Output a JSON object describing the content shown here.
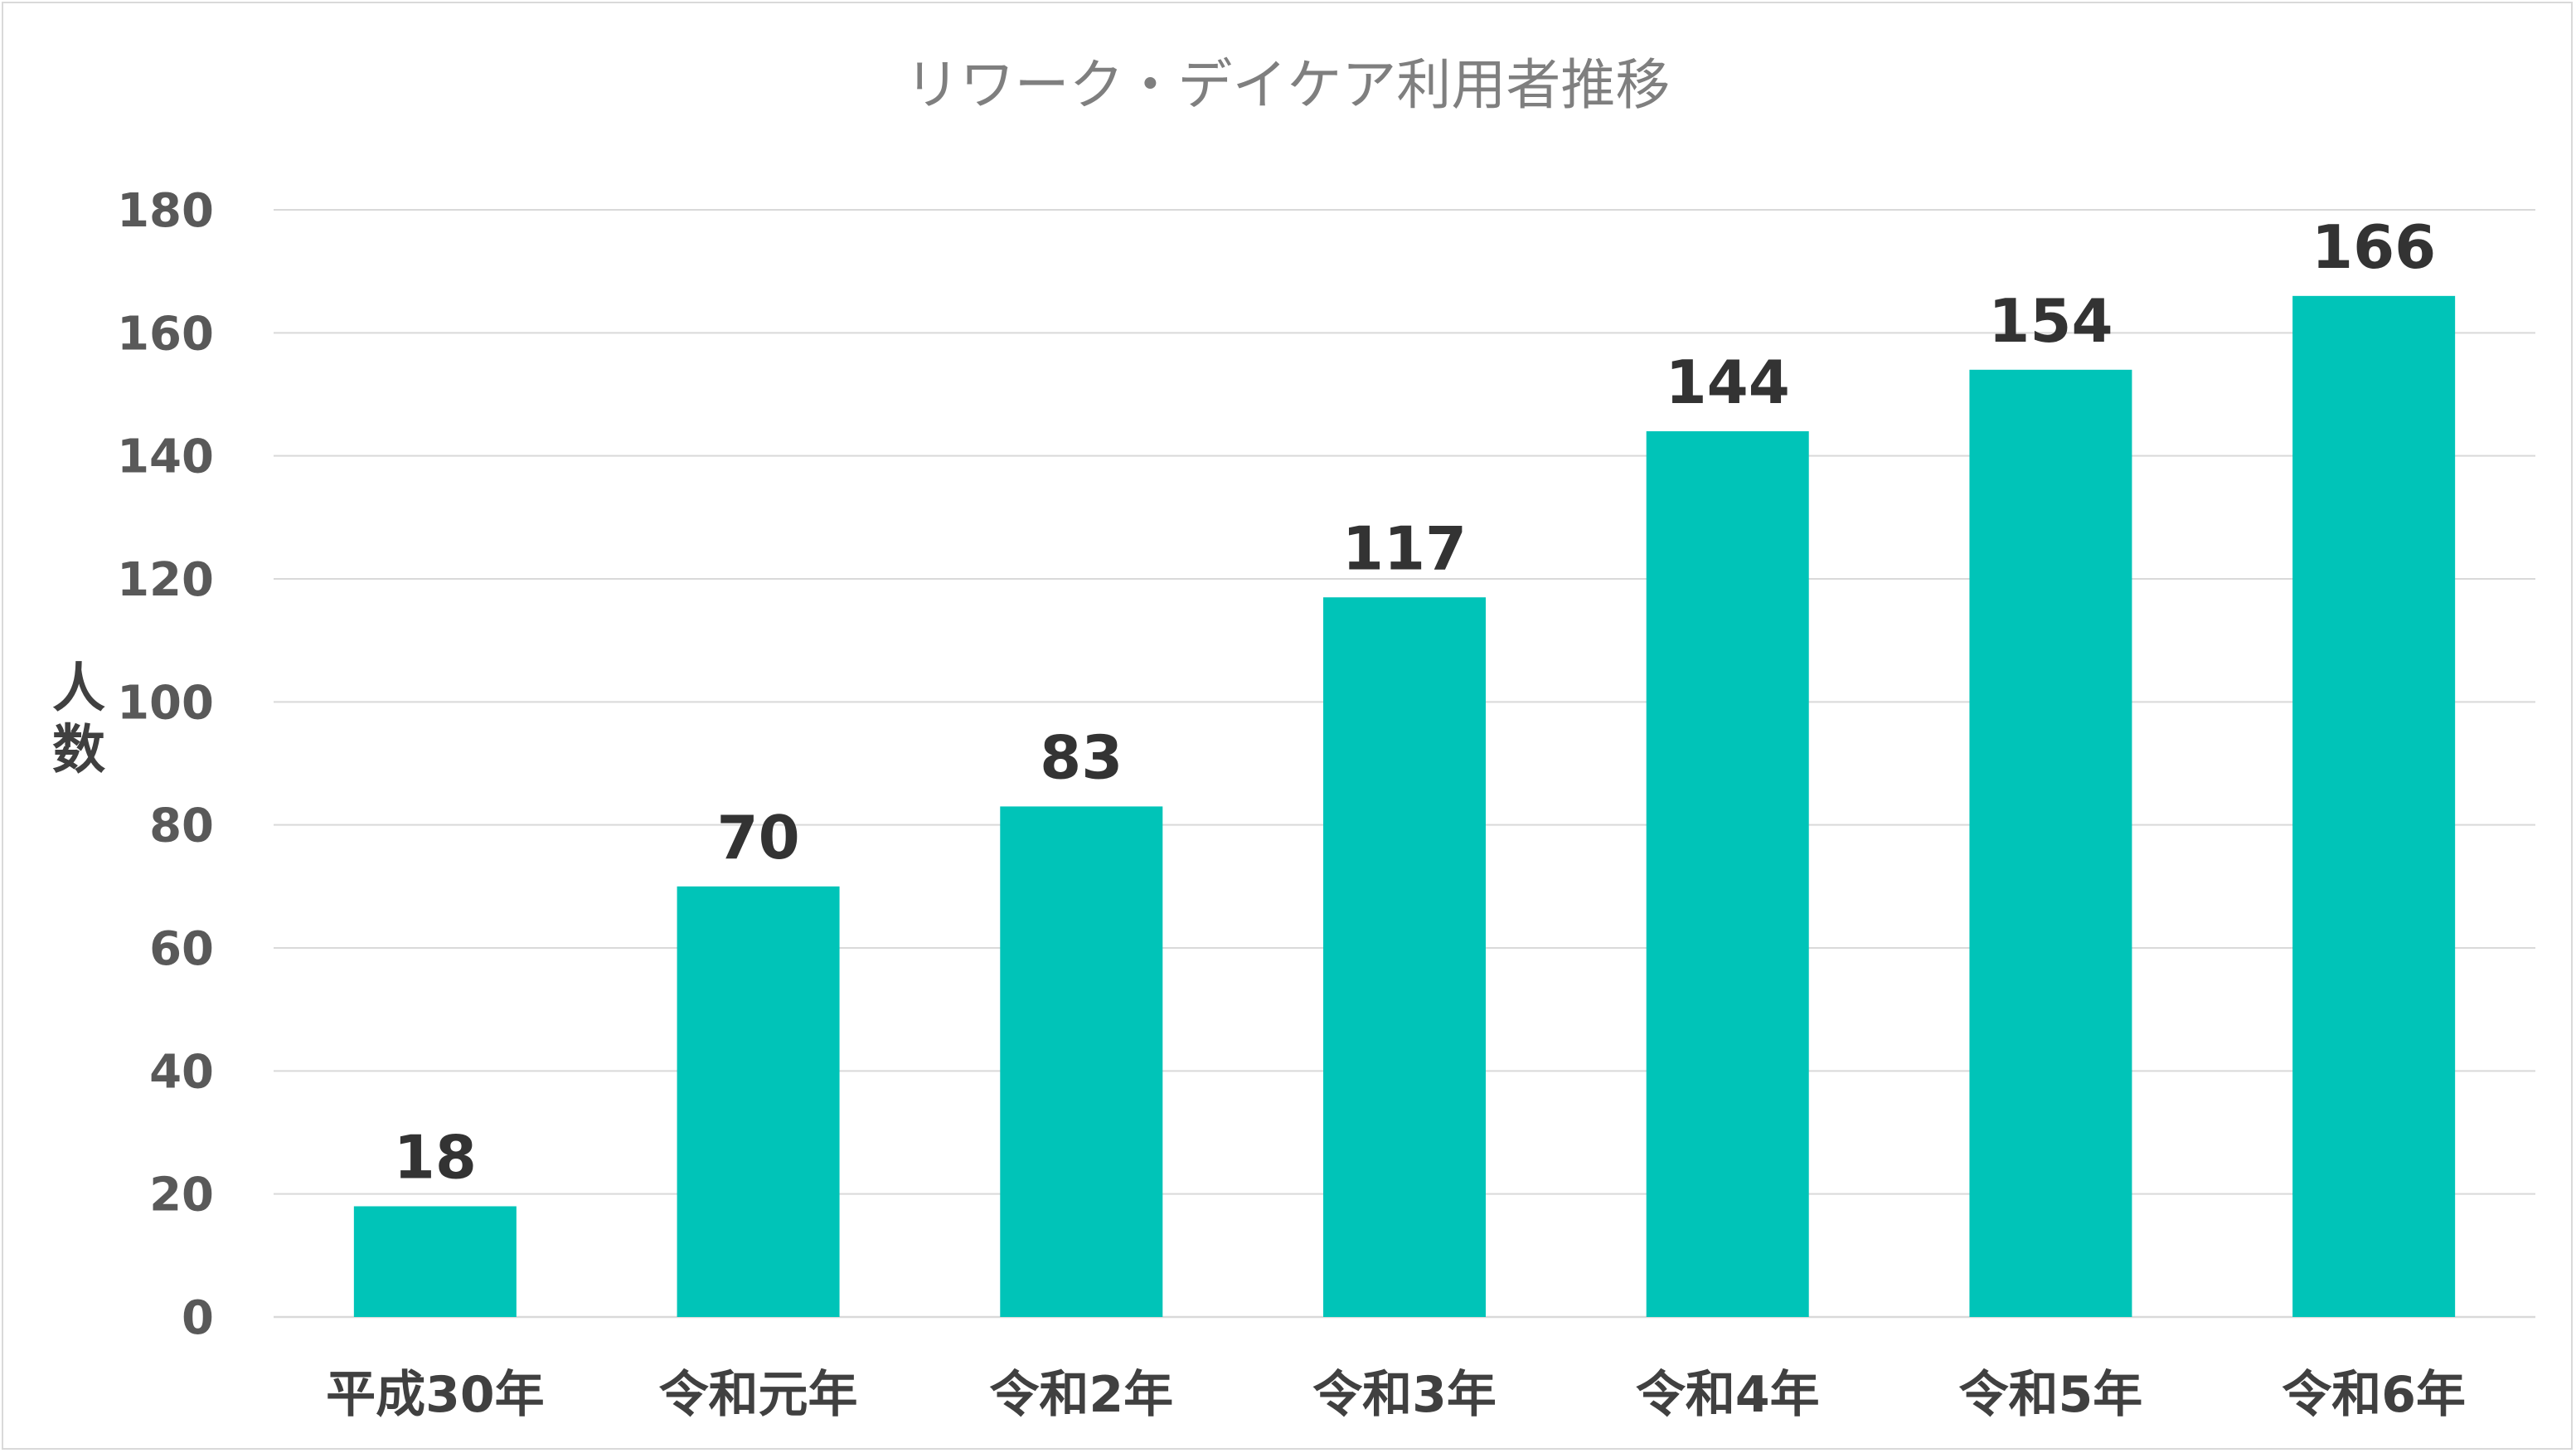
{
  "chart_data": {
    "type": "bar",
    "title": "リワーク・デイケア利用者推移",
    "ylabel": "人数",
    "xlabel": "",
    "categories": [
      "平成30年",
      "令和元年",
      "令和2年",
      "令和3年",
      "令和4年",
      "令和5年",
      "令和6年"
    ],
    "values": [
      18,
      70,
      83,
      117,
      144,
      154,
      166
    ],
    "ylim": [
      0,
      180
    ],
    "yticks": [
      0,
      20,
      40,
      60,
      80,
      100,
      120,
      140,
      160,
      180
    ],
    "grid": true,
    "legend": "none",
    "bar_color": "#00c4b8"
  }
}
